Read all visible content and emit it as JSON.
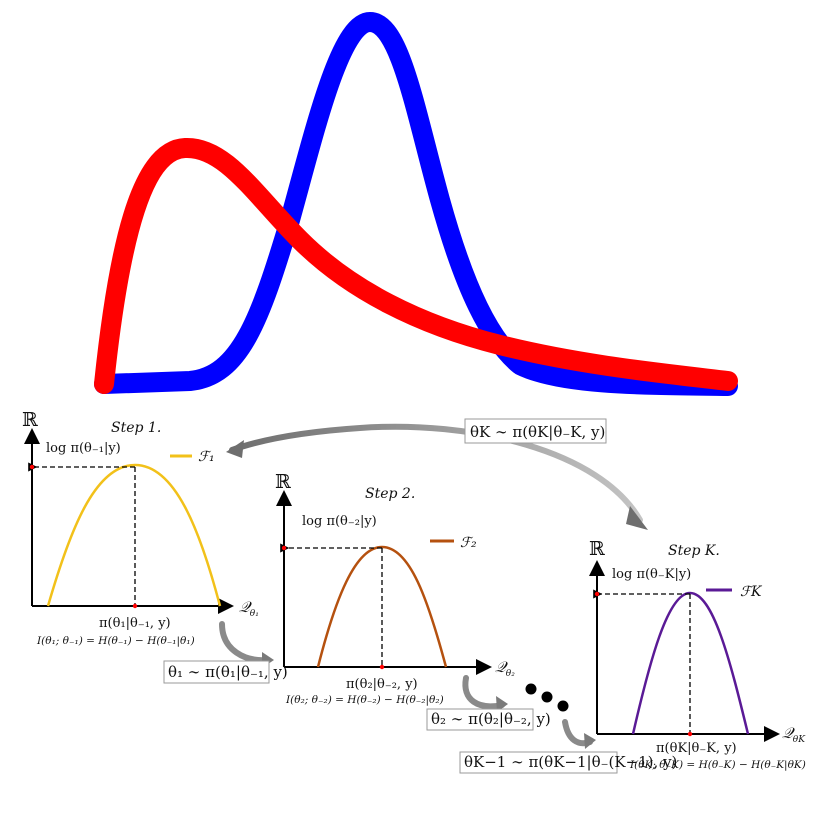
{
  "colors": {
    "red_curve": "#ff0000",
    "blue_curve": "#0000ff",
    "step1_curve": "#f2c11a",
    "step2_curve": "#b5510f",
    "stepK_curve": "#5a1a96",
    "arrow_gray": "#808080",
    "box_border": "#9a9a9a"
  },
  "top_curves": {
    "red": {
      "name": "red-distribution",
      "color": "#ff0000"
    },
    "blue": {
      "name": "blue-distribution",
      "color": "#0000ff"
    }
  },
  "steps": [
    {
      "step_label": "Step 1.",
      "axis_y": "ℝ",
      "axis_x_main": "𝒬",
      "axis_x_sub": "θ₁",
      "peak_label": "log π(θ₋₁|y)",
      "legend": "ℱ₁",
      "argmax_label": "π(θ₁|θ₋₁, y)",
      "info_formula": "I(θ₁; θ₋₁) = H(θ₋₁) − H(θ₋₁|θ₁)",
      "sample_box": "θ₁ ∼ π(θ₁|θ₋₁, y)"
    },
    {
      "step_label": "Step 2.",
      "axis_y": "ℝ",
      "axis_x_main": "𝒬",
      "axis_x_sub": "θ₂",
      "peak_label": "log π(θ₋₂|y)",
      "legend": "ℱ₂",
      "argmax_label": "π(θ₂|θ₋₂, y)",
      "info_formula": "I(θ₂; θ₋₂) = H(θ₋₂) − H(θ₋₂|θ₂)",
      "sample_box": "θ₂ ∼ π(θ₂|θ₋₂, y)"
    },
    {
      "step_label": "Step K.",
      "axis_y": "ℝ",
      "axis_x_main": "𝒬",
      "axis_x_sub": "θK",
      "peak_label": "log π(θ₋K|y)",
      "legend": "ℱK",
      "argmax_label": "π(θK|θ₋K, y)",
      "info_formula": "I(θK; θ₋K) = H(θ₋K) − H(θ₋K|θK)",
      "sample_box": "θK ∼ π(θK|θ₋K, y)"
    }
  ],
  "intermediate_box": "θK−1 ∼ π(θK−1|θ₋(K−1), y)"
}
